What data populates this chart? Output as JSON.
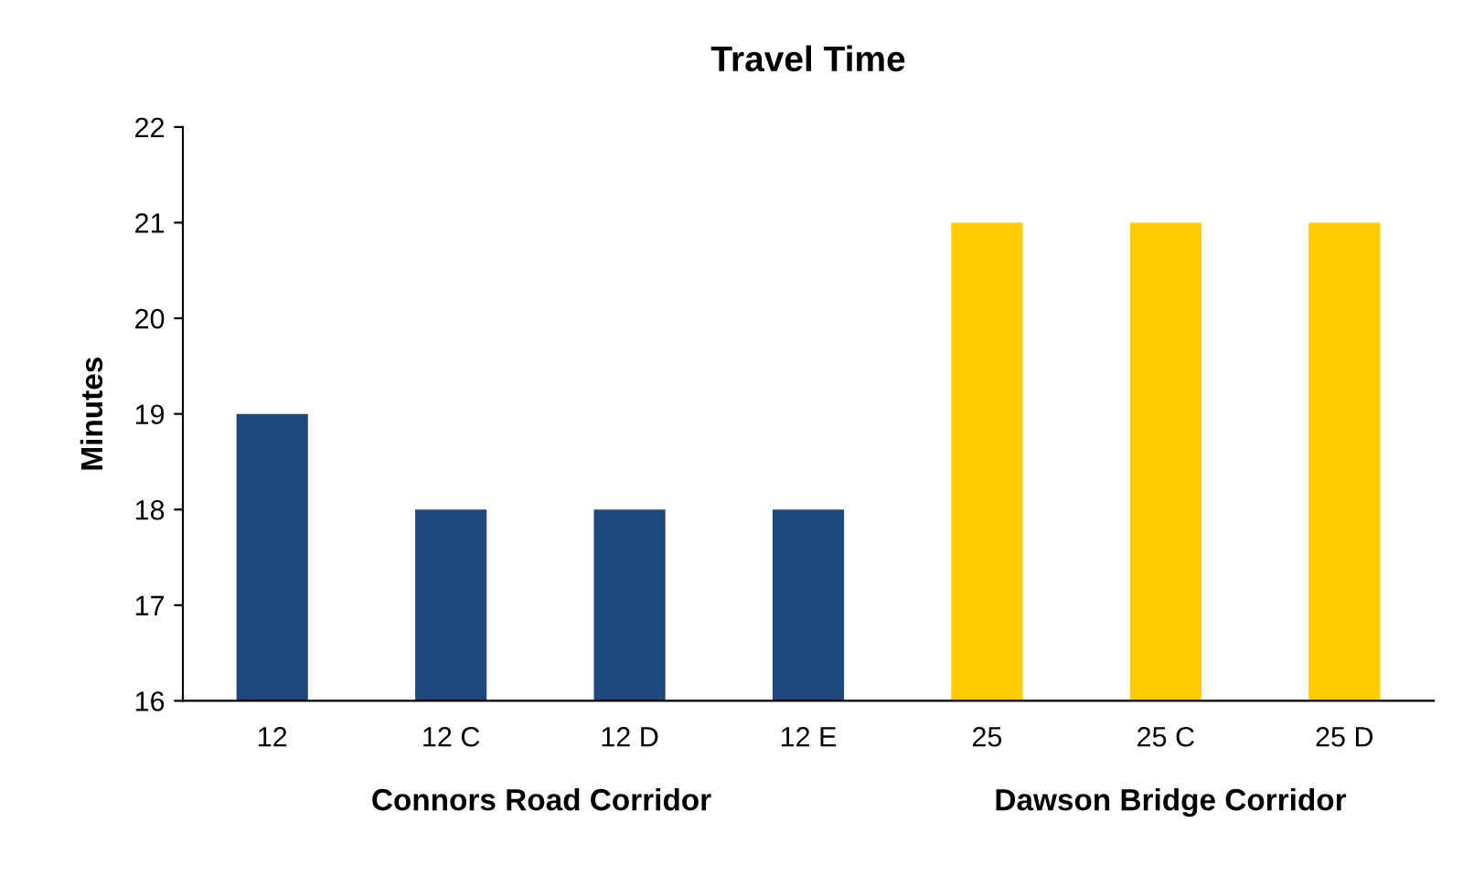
{
  "chart_data": {
    "type": "bar",
    "title": "Travel Time",
    "ylabel": "Minutes",
    "categories": [
      "12",
      "12 C",
      "12 D",
      "12 E",
      "25",
      "25 C",
      "25 D"
    ],
    "values": [
      19,
      18,
      18,
      18,
      21,
      21,
      21
    ],
    "colors": [
      "#1f497d",
      "#1f497d",
      "#1f497d",
      "#1f497d",
      "#ffcc00",
      "#ffcc00",
      "#ffcc00"
    ],
    "ylim": [
      16,
      22
    ],
    "yticks": [
      16,
      17,
      18,
      19,
      20,
      21,
      22
    ],
    "grid": false,
    "legend": false,
    "annotations": [
      "Connors Road Corridor",
      "Dawson Bridge Corridor"
    ]
  }
}
